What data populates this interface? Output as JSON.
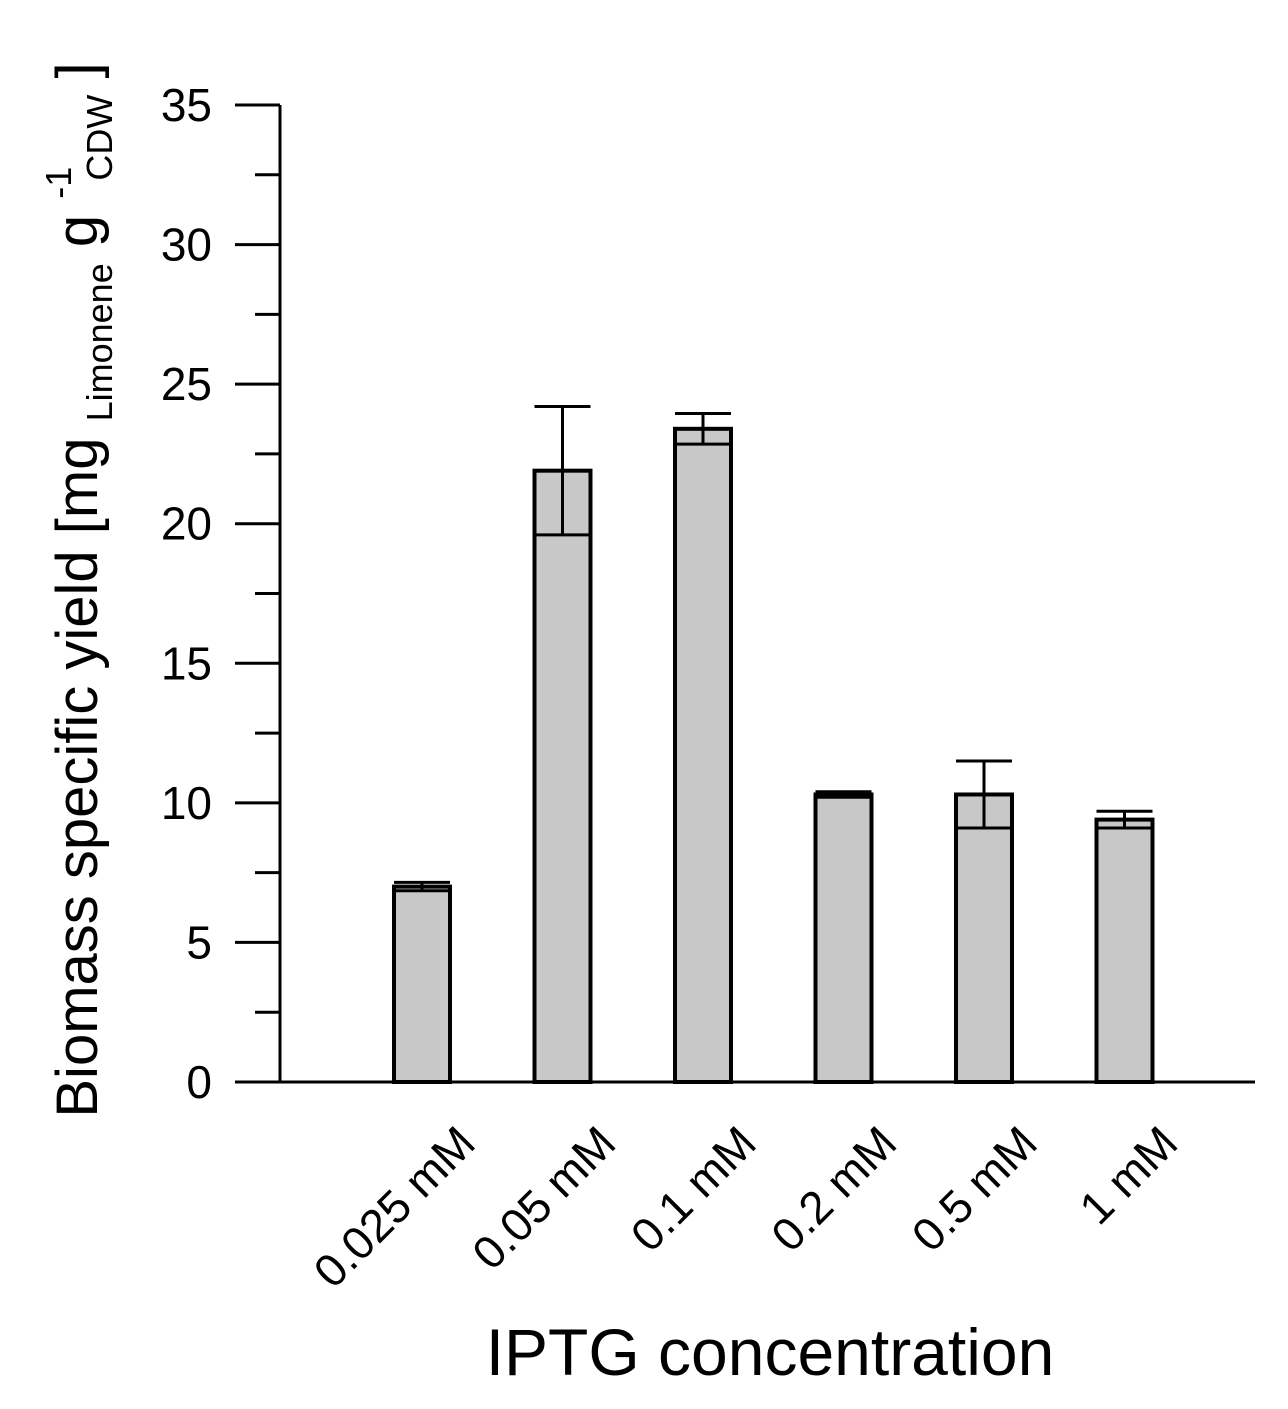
{
  "chart_data": {
    "type": "bar",
    "xlabel": "IPTG concentration",
    "ylabel": {
      "main": "Biomass specific yield [mg",
      "sub1": "Limonene",
      "unit_g": " g",
      "sub2": "CDW",
      "sup": "-1",
      "close": "]"
    },
    "categories": [
      "0.025 mM",
      "0.05 mM",
      "0.1 mM",
      "0.2 mM",
      "0.5 mM",
      "1 mM"
    ],
    "values": [
      7.0,
      21.9,
      23.4,
      10.3,
      10.3,
      9.4
    ],
    "errors": [
      0.15,
      2.3,
      0.55,
      0.1,
      1.2,
      0.3
    ],
    "ylim": [
      0,
      35
    ],
    "yticks": [
      0,
      5,
      10,
      15,
      20,
      25,
      30,
      35
    ],
    "grid": false,
    "colors": {
      "bar_fill": "#c8c8c8",
      "bar_stroke": "#000000",
      "axis": "#000000"
    }
  }
}
